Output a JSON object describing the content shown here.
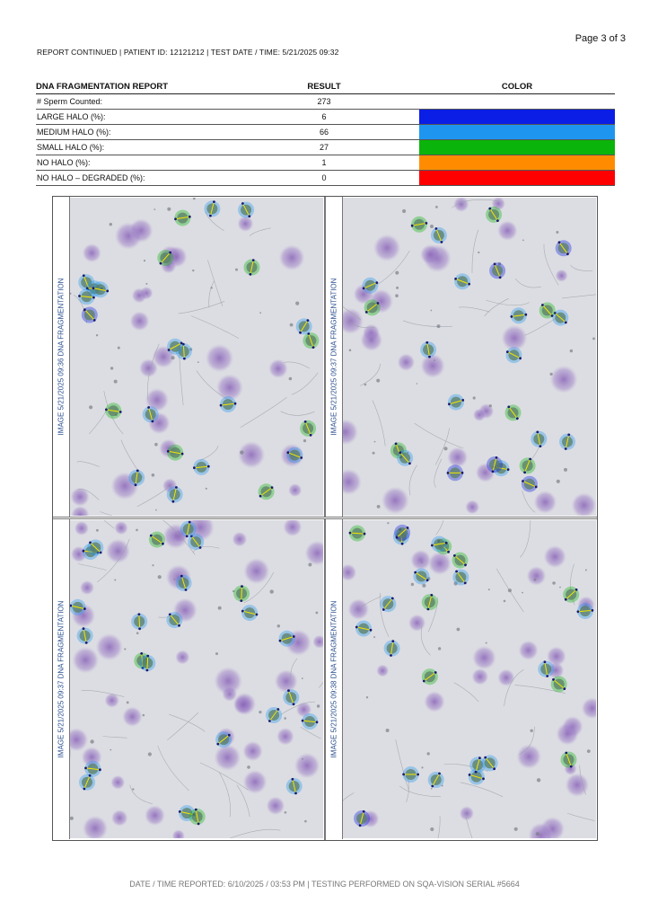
{
  "header": {
    "page": "Page  3 of  3",
    "report_continued": "REPORT CONTINUED | PATIENT ID: 12121212 | TEST DATE / TIME: 5/21/2025 09:32"
  },
  "table": {
    "headers": [
      "DNA FRAGMENTATION REPORT",
      "RESULT",
      "COLOR"
    ],
    "rows": [
      {
        "label": "# Sperm Counted:",
        "value": "273",
        "color": ""
      },
      {
        "label": "LARGE HALO (%):",
        "value": "6",
        "color": "#0a1ee6"
      },
      {
        "label": "MEDIUM HALO (%):",
        "value": "66",
        "color": "#1e96f0"
      },
      {
        "label": "SMALL HALO (%):",
        "value": "27",
        "color": "#0ab40a"
      },
      {
        "label": "NO HALO (%):",
        "value": "1",
        "color": "#ff8c00"
      },
      {
        "label": "NO HALO – DEGRADED (%):",
        "value": "0",
        "color": "#ff0000"
      }
    ]
  },
  "images": [
    {
      "label": "IMAGE 5/21/2025 09:36 DNA FRAGMENTATION"
    },
    {
      "label": "IMAGE 5/21/2025 09:37 DNA FRAGMENTATION"
    },
    {
      "label": "IMAGE 5/21/2025 09:37 DNA FRAGMENTATION"
    },
    {
      "label": "IMAGE 5/21/2025 09:38 DNA FRAGMENTATION"
    }
  ],
  "footer": "DATE / TIME REPORTED: 6/10/2025 / 03:53 PM | TESTING PERFORMED ON SQA-VISION SERIAL #5664"
}
